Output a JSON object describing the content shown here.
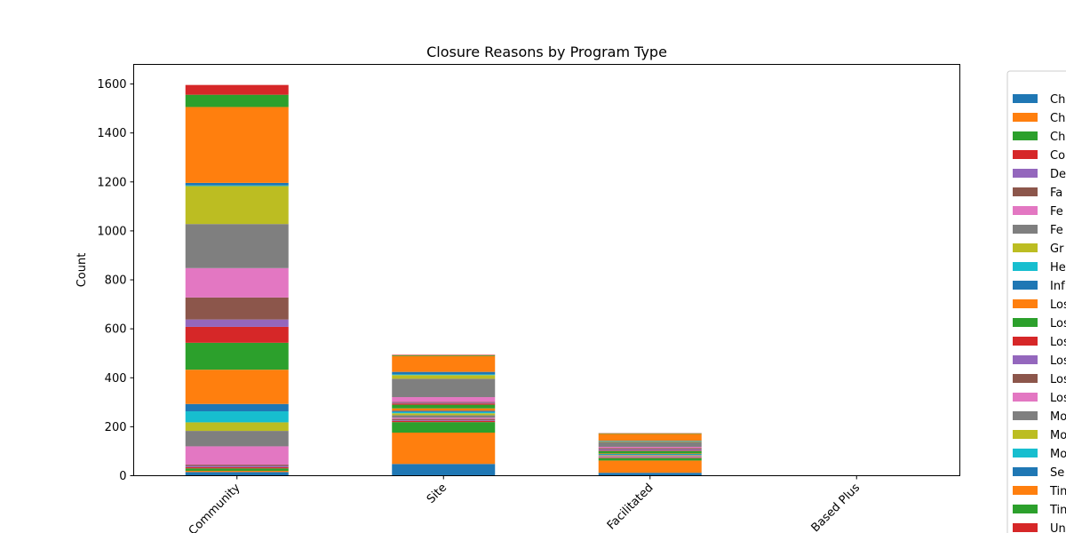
{
  "chart_data": {
    "type": "bar",
    "stacked": true,
    "title": "Closure Reasons by Program Type",
    "xlabel": "",
    "ylabel": "Count",
    "ylim": [
      0,
      1680
    ],
    "yticks": [
      0,
      200,
      400,
      600,
      800,
      1000,
      1200,
      1400,
      1600
    ],
    "categories": [
      "Community",
      "Site",
      "Facilitated",
      "Based Plus"
    ],
    "legend_position": "right",
    "series": [
      {
        "name": "Ch",
        "color": "#1f77b4",
        "values": [
          15,
          48,
          12,
          0
        ]
      },
      {
        "name": "Ch",
        "color": "#ff7f0e",
        "values": [
          5,
          128,
          50,
          0
        ]
      },
      {
        "name": "Ch",
        "color": "#2ca02c",
        "values": [
          10,
          43,
          10,
          0
        ]
      },
      {
        "name": "Co",
        "color": "#d62728",
        "values": [
          5,
          5,
          2,
          0
        ]
      },
      {
        "name": "De",
        "color": "#9467bd",
        "values": [
          5,
          3,
          1,
          0
        ]
      },
      {
        "name": "Fa",
        "color": "#8c564b",
        "values": [
          5,
          5,
          2,
          0
        ]
      },
      {
        "name": "Fe",
        "color": "#e377c2",
        "values": [
          75,
          5,
          3,
          0
        ]
      },
      {
        "name": "Fe",
        "color": "#7f7f7f",
        "values": [
          63,
          10,
          3,
          0
        ]
      },
      {
        "name": "Gr",
        "color": "#bcbd22",
        "values": [
          35,
          8,
          2,
          0
        ]
      },
      {
        "name": "He",
        "color": "#17becf",
        "values": [
          45,
          5,
          2,
          0
        ]
      },
      {
        "name": "Inf",
        "color": "#1f77b4",
        "values": [
          30,
          5,
          2,
          0
        ]
      },
      {
        "name": "Los",
        "color": "#ff7f0e",
        "values": [
          140,
          10,
          2,
          0
        ]
      },
      {
        "name": "Los",
        "color": "#2ca02c",
        "values": [
          110,
          15,
          10,
          0
        ]
      },
      {
        "name": "Los",
        "color": "#d62728",
        "values": [
          65,
          5,
          2,
          0
        ]
      },
      {
        "name": "Los",
        "color": "#9467bd",
        "values": [
          30,
          3,
          5,
          0
        ]
      },
      {
        "name": "Los",
        "color": "#8c564b",
        "values": [
          90,
          3,
          5,
          0
        ]
      },
      {
        "name": "Los",
        "color": "#e377c2",
        "values": [
          120,
          20,
          5,
          0
        ]
      },
      {
        "name": "Mo",
        "color": "#7f7f7f",
        "values": [
          180,
          75,
          20,
          0
        ]
      },
      {
        "name": "Mo",
        "color": "#bcbd22",
        "values": [
          155,
          15,
          2,
          0
        ]
      },
      {
        "name": "Mo",
        "color": "#17becf",
        "values": [
          3,
          3,
          1,
          0
        ]
      },
      {
        "name": "Se",
        "color": "#1f77b4",
        "values": [
          10,
          10,
          2,
          0
        ]
      },
      {
        "name": "Tin",
        "color": "#ff7f0e",
        "values": [
          310,
          65,
          28,
          0
        ]
      },
      {
        "name": "Tin",
        "color": "#2ca02c",
        "values": [
          50,
          3,
          2,
          0
        ]
      },
      {
        "name": "Un",
        "color": "#d62728",
        "values": [
          40,
          2,
          1,
          0
        ]
      }
    ]
  }
}
